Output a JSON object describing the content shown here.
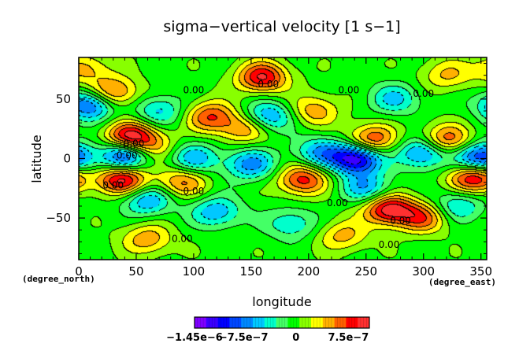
{
  "chart_data": {
    "type": "heatmap",
    "title": "sigma−vertical velocity [1 s−1]",
    "xlabel": "longitude",
    "ylabel": "latitude",
    "x_unit_label": "(degree_east)",
    "y_unit_label": "(degree_north)",
    "xlim": [
      0,
      355
    ],
    "ylim": [
      -85,
      85
    ],
    "x_ticks": [
      0,
      50,
      100,
      150,
      200,
      250,
      300,
      350
    ],
    "y_ticks": [
      -50,
      0,
      50
    ],
    "x_tick_labels": [
      "0",
      "50",
      "100",
      "150",
      "200",
      "250",
      "300",
      "350"
    ],
    "y_tick_labels": [
      "−50",
      "0",
      "50"
    ],
    "contour_label": "0.00",
    "contour_label_points": [
      {
        "lon": 165,
        "lat": 60
      },
      {
        "lon": 100,
        "lat": 55
      },
      {
        "lon": 235,
        "lat": 55
      },
      {
        "lon": 300,
        "lat": 52
      },
      {
        "lon": 48,
        "lat": 10
      },
      {
        "lon": 42,
        "lat": 0
      },
      {
        "lon": 30,
        "lat": -25
      },
      {
        "lon": 100,
        "lat": -30
      },
      {
        "lon": 225,
        "lat": -40
      },
      {
        "lon": 280,
        "lat": -55
      },
      {
        "lon": 90,
        "lat": -70
      },
      {
        "lon": 270,
        "lat": -75
      }
    ],
    "colorbar": {
      "min": -1.45e-06,
      "max": 1.05e-06,
      "tick_labels": [
        "−1.45e−6",
        "−7.5e−7",
        "0",
        "7.5e−7"
      ],
      "tick_values": [
        -1.45e-06,
        -7.5e-07,
        0,
        7.5e-07
      ],
      "colors": [
        "#7f00ff",
        "#3a00ff",
        "#0000ff",
        "#0046ff",
        "#0088ff",
        "#00c8ff",
        "#00ffcc",
        "#44ff66",
        "#00ff00",
        "#88ff00",
        "#ffff00",
        "#ffb000",
        "#ff6000",
        "#ff0000",
        "#ff3030"
      ]
    },
    "features": [
      {
        "lon": 45,
        "lat": 18,
        "value": 1e-06
      },
      {
        "lon": 38,
        "lat": -18,
        "value": 1e-06
      },
      {
        "lon": 345,
        "lat": -16,
        "value": 1e-06
      },
      {
        "lon": 270,
        "lat": -43,
        "value": 1e-06
      },
      {
        "lon": 160,
        "lat": 68,
        "value": 9e-07
      },
      {
        "lon": 195,
        "lat": -18,
        "value": 8e-07
      },
      {
        "lon": 255,
        "lat": 15,
        "value": 8e-07
      },
      {
        "lon": 320,
        "lat": 15,
        "value": 7.5e-07
      },
      {
        "lon": 115,
        "lat": 35,
        "value": 7e-07
      },
      {
        "lon": 30,
        "lat": 55,
        "value": 7e-07
      },
      {
        "lon": 300,
        "lat": -50,
        "value": 6.5e-07
      },
      {
        "lon": 90,
        "lat": -20,
        "value": 6e-07
      },
      {
        "lon": 145,
        "lat": 25,
        "value": 5.5e-07
      },
      {
        "lon": 205,
        "lat": 40,
        "value": 5e-07
      },
      {
        "lon": 60,
        "lat": -68,
        "value": 5e-07
      },
      {
        "lon": 230,
        "lat": -65,
        "value": 4.5e-07
      },
      {
        "lon": 5,
        "lat": 75,
        "value": 4.5e-07
      },
      {
        "lon": 320,
        "lat": 70,
        "value": 4e-07
      },
      {
        "lon": 65,
        "lat": 10,
        "value": 4e-07
      },
      {
        "lon": 242,
        "lat": 0,
        "value": -1.3e-06
      },
      {
        "lon": 350,
        "lat": 0,
        "value": -1.1e-06
      },
      {
        "lon": 40,
        "lat": 2,
        "value": -1e-06
      },
      {
        "lon": 10,
        "lat": 45,
        "value": -9e-07
      },
      {
        "lon": 150,
        "lat": -5,
        "value": -7e-07
      },
      {
        "lon": 300,
        "lat": 5,
        "value": -8e-07
      },
      {
        "lon": 165,
        "lat": 35,
        "value": -7e-07
      },
      {
        "lon": 60,
        "lat": -35,
        "value": -6.5e-07
      },
      {
        "lon": 120,
        "lat": -45,
        "value": -6e-07
      },
      {
        "lon": 250,
        "lat": -25,
        "value": -6e-07
      },
      {
        "lon": 275,
        "lat": 50,
        "value": -5e-07
      },
      {
        "lon": 100,
        "lat": 0,
        "value": -6e-07
      },
      {
        "lon": 210,
        "lat": 5,
        "value": -6e-07
      },
      {
        "lon": 70,
        "lat": 40,
        "value": -5e-07
      },
      {
        "lon": 330,
        "lat": -40,
        "value": -5e-07
      },
      {
        "lon": 185,
        "lat": -55,
        "value": -4.5e-07
      }
    ]
  }
}
